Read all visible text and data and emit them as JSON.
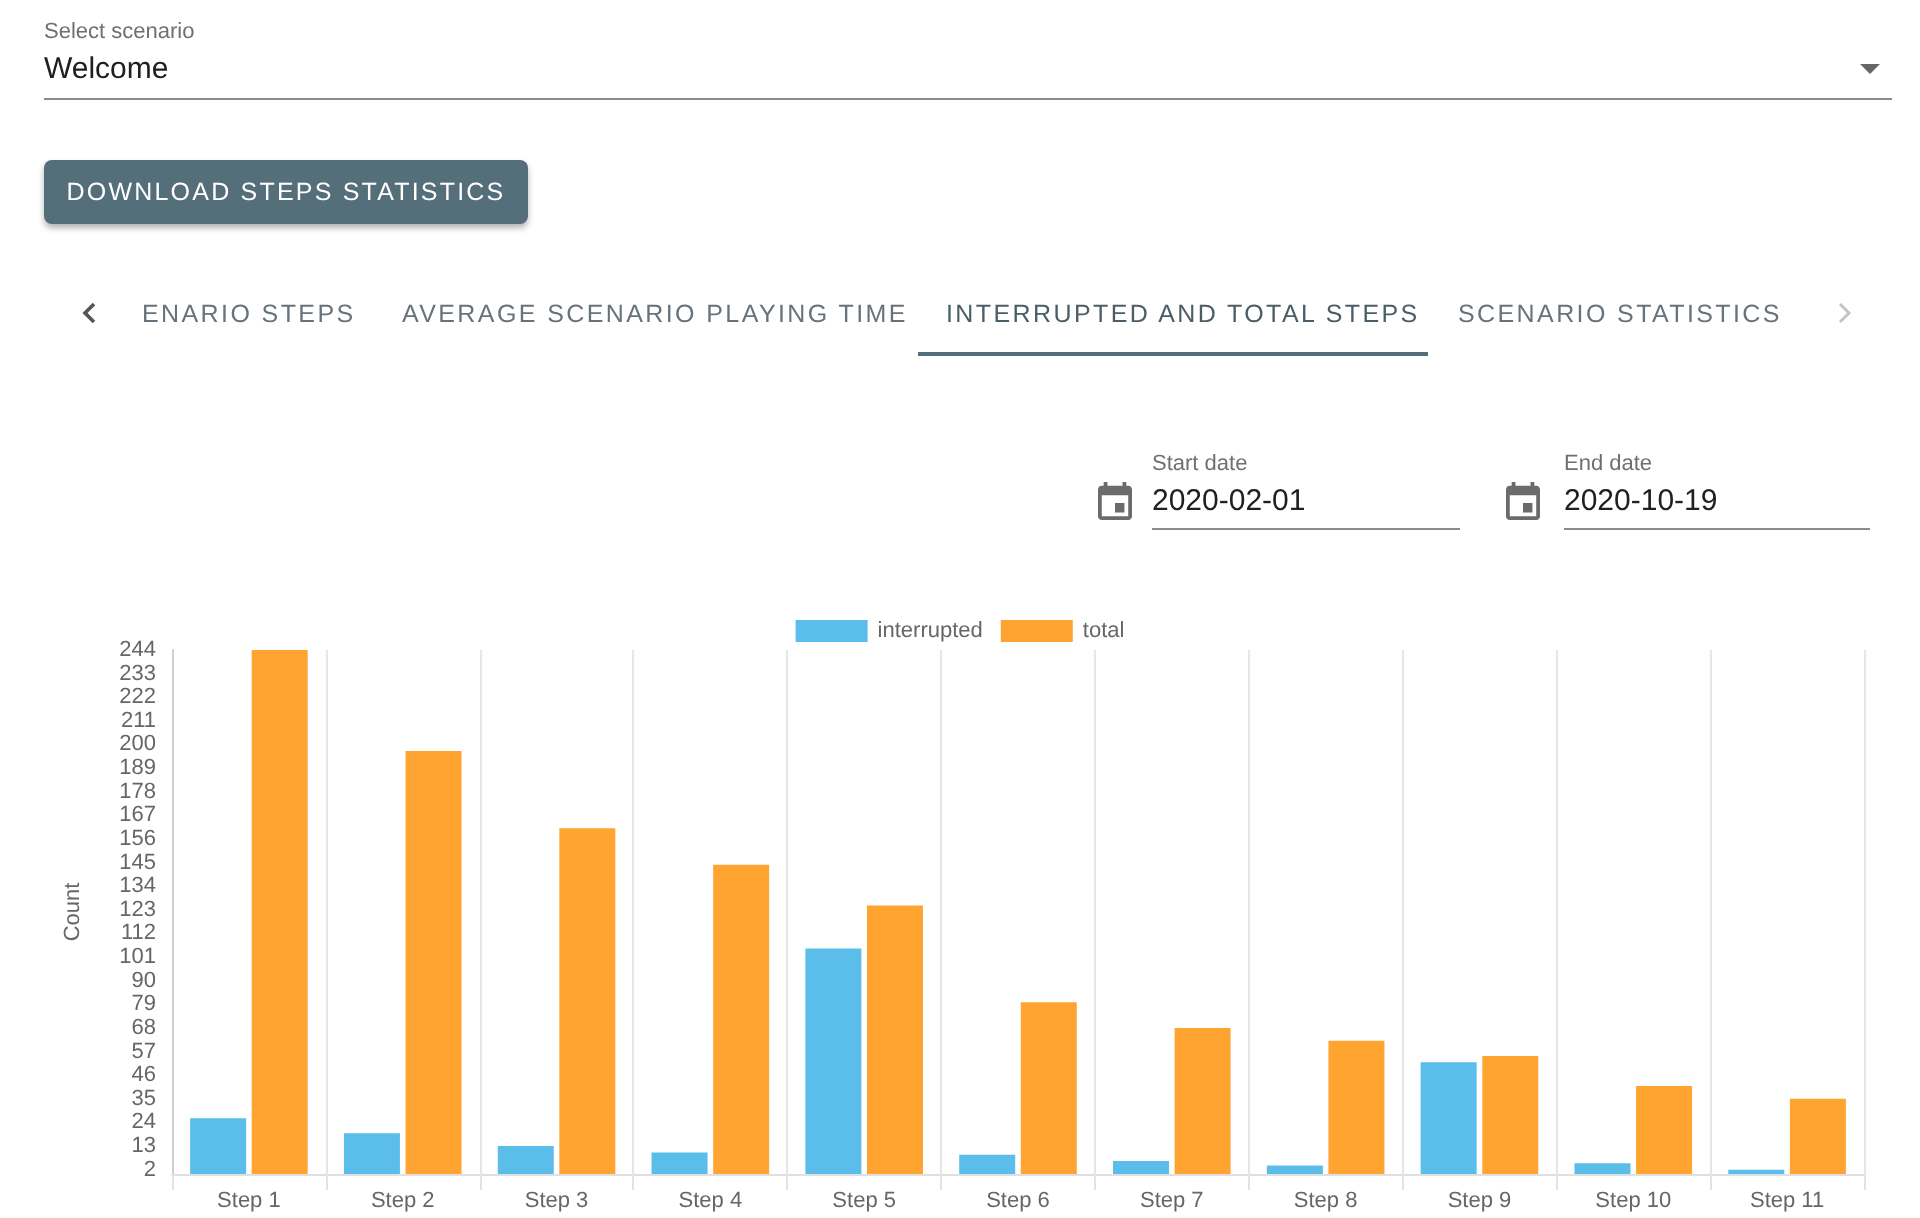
{
  "chart_data": [
    {
      "type": "other",
      "annotations": [
        "Select scenario",
        "Welcome",
        "DOWNLOAD STEPS STATISTICS",
        "ENARIO STEPS",
        "AVERAGE SCENARIO PLAYING TIME",
        "INTERRUPTED AND TOTAL STEPS",
        "SCENARIO STATISTICS",
        "Start date",
        "2020-02-01",
        "End date",
        "2020-10-19"
      ]
    },
    {
      "type": "bar",
      "categories": [
        "Step 1",
        "Step 2",
        "Step 3",
        "Step 4",
        "Step 5",
        "Step 6",
        "Step 7",
        "Step 8",
        "Step 9",
        "Step 10",
        "Step 11"
      ],
      "series": [
        {
          "name": "interrupted",
          "color": "#5bbde9",
          "values": [
            26,
            19,
            13,
            10,
            105,
            9,
            6,
            4,
            52,
            5,
            2
          ]
        },
        {
          "name": "total",
          "color": "#ffa431",
          "values": [
            244,
            197,
            161,
            144,
            125,
            80,
            68,
            62,
            55,
            41,
            35
          ]
        }
      ],
      "ylabel": "Count",
      "ylim": [
        0,
        244
      ],
      "yticks": [
        2,
        13,
        24,
        35,
        46,
        57,
        68,
        79,
        90,
        101,
        112,
        123,
        134,
        145,
        156,
        167,
        178,
        189,
        200,
        211,
        222,
        233,
        244
      ],
      "grid": "x",
      "legend": "top"
    }
  ]
}
